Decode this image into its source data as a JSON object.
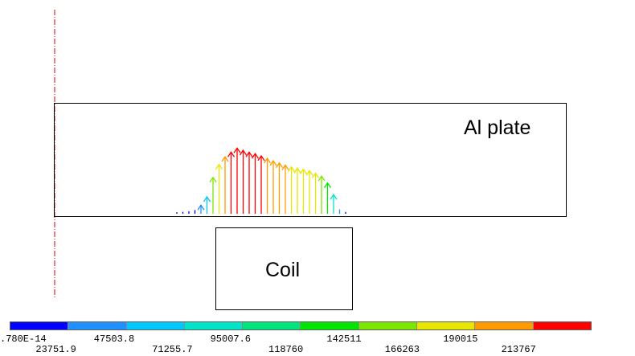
{
  "labels": {
    "plate": "Al plate",
    "coil": "Coil"
  },
  "legend": {
    "colors": [
      "#0000ff",
      "#1e90ff",
      "#00c8ff",
      "#00e5c8",
      "#00e57a",
      "#00e600",
      "#7de600",
      "#e6e600",
      "#ff9b00",
      "#ff0000"
    ],
    "ticks": [
      ".780E-14",
      "23751.9",
      "47503.8",
      "71255.7",
      "95007.6",
      "118760",
      "142511",
      "166263",
      "190015",
      "213767"
    ]
  },
  "vector_field": {
    "max_magnitude": 213767,
    "vectors": [
      {
        "m": 5000,
        "c": 0
      },
      {
        "m": 6000,
        "c": 0
      },
      {
        "m": 8000,
        "c": 0
      },
      {
        "m": 12000,
        "c": 0
      },
      {
        "m": 28000,
        "c": 1
      },
      {
        "m": 55000,
        "c": 2
      },
      {
        "m": 118000,
        "c": 6
      },
      {
        "m": 160000,
        "c": 7
      },
      {
        "m": 185000,
        "c": 8
      },
      {
        "m": 200000,
        "c": 9
      },
      {
        "m": 213000,
        "c": 9
      },
      {
        "m": 206000,
        "c": 9
      },
      {
        "m": 200000,
        "c": 9
      },
      {
        "m": 195000,
        "c": 9
      },
      {
        "m": 188000,
        "c": 9
      },
      {
        "m": 180000,
        "c": 8
      },
      {
        "m": 172000,
        "c": 8
      },
      {
        "m": 165000,
        "c": 8
      },
      {
        "m": 158000,
        "c": 8
      },
      {
        "m": 152000,
        "c": 7
      },
      {
        "m": 148000,
        "c": 7
      },
      {
        "m": 145000,
        "c": 7
      },
      {
        "m": 140000,
        "c": 7
      },
      {
        "m": 132000,
        "c": 7
      },
      {
        "m": 122000,
        "c": 6
      },
      {
        "m": 100000,
        "c": 5
      },
      {
        "m": 62000,
        "c": 3
      },
      {
        "m": 14000,
        "c": 1
      },
      {
        "m": 6000,
        "c": 0
      }
    ]
  }
}
